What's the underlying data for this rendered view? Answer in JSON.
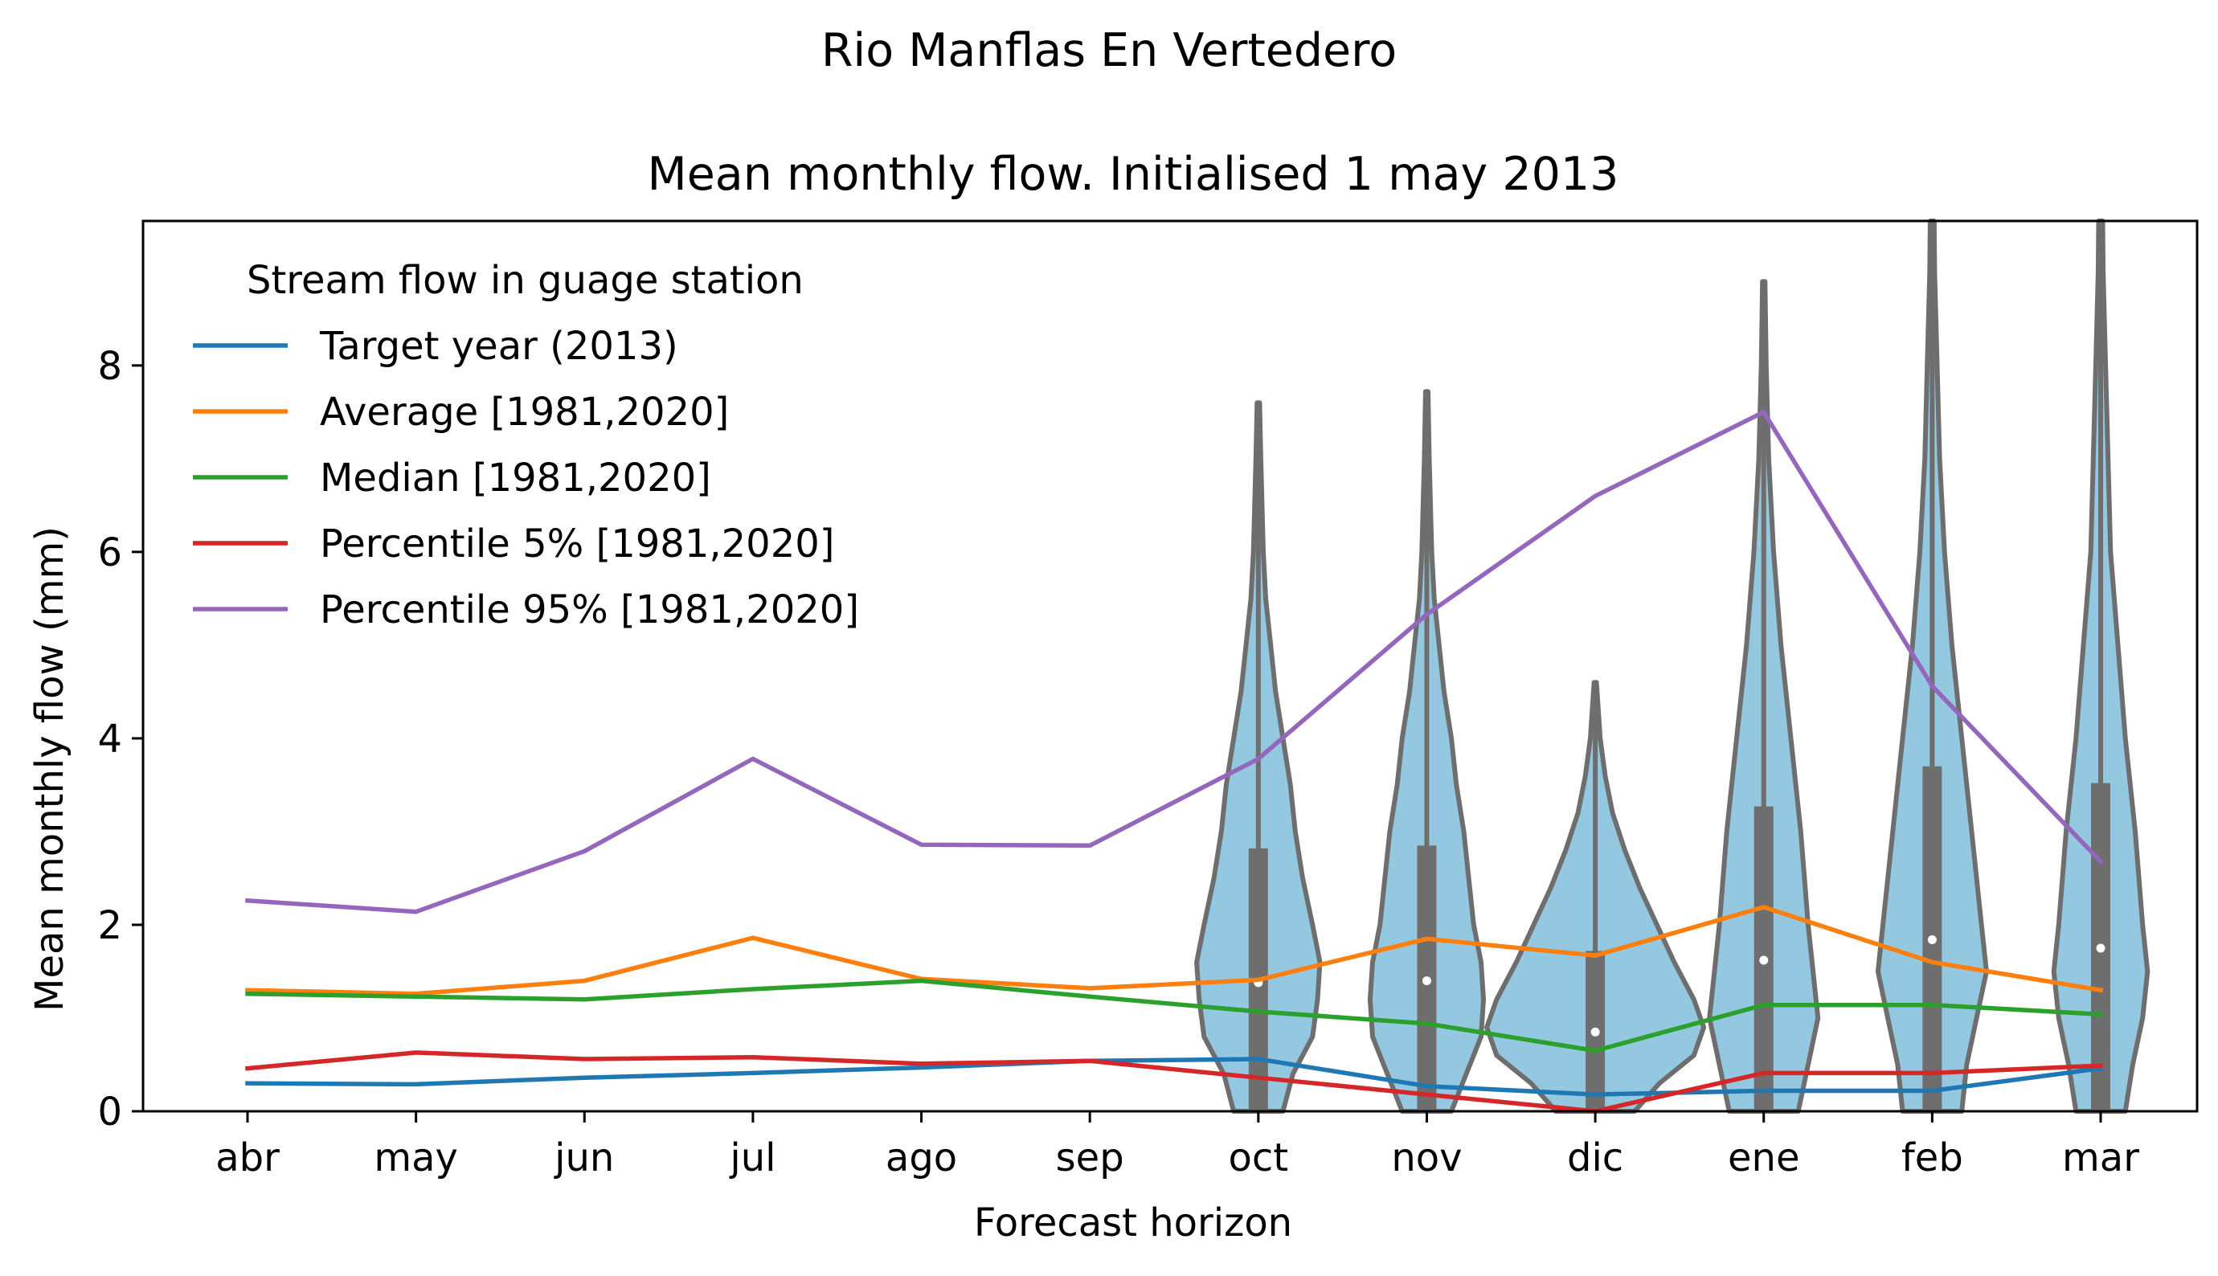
{
  "chart_data": {
    "type": "line",
    "suptitle": "Rio Manflas En Vertedero",
    "title": "Mean monthly flow. Initialised 1 may 2013",
    "xlabel": "Forecast horizon",
    "ylabel": "Mean monthly flow (mm)",
    "categories": [
      "abr",
      "may",
      "jun",
      "jul",
      "ago",
      "sep",
      "oct",
      "nov",
      "dic",
      "ene",
      "feb",
      "mar"
    ],
    "ylim": [
      0,
      9.55
    ],
    "yticks": [
      0,
      2,
      4,
      6,
      8
    ],
    "ytick_labels": [
      "0",
      "2",
      "4",
      "6",
      "8"
    ],
    "grid": false,
    "legend": {
      "title": "Stream flow in guage station",
      "location": "upper-left"
    },
    "series": [
      {
        "name": "Target year (2013)",
        "color": "#1f77b4",
        "values": [
          0.3,
          0.29,
          0.36,
          0.41,
          0.47,
          0.54,
          0.56,
          0.27,
          0.18,
          0.22,
          0.22,
          0.46
        ]
      },
      {
        "name": "Average [1981,2020]",
        "color": "#ff7f0e",
        "values": [
          1.3,
          1.26,
          1.4,
          1.86,
          1.42,
          1.32,
          1.41,
          1.85,
          1.67,
          2.19,
          1.6,
          1.3
        ]
      },
      {
        "name": "Median [1981,2020]",
        "color": "#2ca02c",
        "values": [
          1.26,
          1.23,
          1.2,
          1.31,
          1.4,
          1.23,
          1.07,
          0.94,
          0.65,
          1.14,
          1.14,
          1.04
        ]
      },
      {
        "name": "Percentile 5% [1981,2020]",
        "color": "#d62728",
        "values": [
          0.46,
          0.63,
          0.56,
          0.58,
          0.51,
          0.54,
          0.36,
          0.18,
          0.0,
          0.41,
          0.41,
          0.49
        ]
      },
      {
        "name": "Percentile 95% [1981,2020]",
        "color": "#9467bd",
        "values": [
          2.26,
          2.14,
          2.79,
          3.78,
          2.86,
          2.85,
          3.78,
          5.33,
          6.6,
          7.5,
          4.56,
          2.68
        ]
      }
    ],
    "violins": {
      "fill": "#93c8e0",
      "edge": "#6e6e6e",
      "items": [
        {
          "category": "oct",
          "max": 7.6,
          "q1": 0.0,
          "median": 1.38,
          "q3": 2.82,
          "profile": [
            [
              0,
              0.1
            ],
            [
              0.4,
              0.14
            ],
            [
              0.8,
              0.22
            ],
            [
              1.2,
              0.24
            ],
            [
              1.6,
              0.25
            ],
            [
              2.0,
              0.22
            ],
            [
              2.5,
              0.18
            ],
            [
              3.0,
              0.15
            ],
            [
              3.5,
              0.13
            ],
            [
              4.0,
              0.1
            ],
            [
              4.5,
              0.07
            ],
            [
              5.0,
              0.05
            ],
            [
              5.5,
              0.03
            ],
            [
              6.0,
              0.02
            ],
            [
              7.0,
              0.01
            ],
            [
              7.6,
              0.005
            ]
          ]
        },
        {
          "category": "nov",
          "max": 7.72,
          "q1": 0.0,
          "median": 1.4,
          "q3": 2.85,
          "profile": [
            [
              0,
              0.1
            ],
            [
              0.4,
              0.16
            ],
            [
              0.8,
              0.22
            ],
            [
              1.2,
              0.23
            ],
            [
              1.6,
              0.22
            ],
            [
              2.0,
              0.19
            ],
            [
              2.5,
              0.17
            ],
            [
              3.0,
              0.15
            ],
            [
              3.5,
              0.12
            ],
            [
              4.0,
              0.1
            ],
            [
              4.5,
              0.07
            ],
            [
              5.0,
              0.05
            ],
            [
              5.5,
              0.03
            ],
            [
              6.0,
              0.02
            ],
            [
              7.0,
              0.01
            ],
            [
              7.72,
              0.005
            ]
          ]
        },
        {
          "category": "dic",
          "max": 4.6,
          "q1": 0.0,
          "median": 0.85,
          "q3": 1.72,
          "profile": [
            [
              0,
              0.16
            ],
            [
              0.3,
              0.26
            ],
            [
              0.6,
              0.4
            ],
            [
              0.9,
              0.44
            ],
            [
              1.2,
              0.4
            ],
            [
              1.6,
              0.32
            ],
            [
              2.0,
              0.25
            ],
            [
              2.4,
              0.18
            ],
            [
              2.8,
              0.12
            ],
            [
              3.2,
              0.07
            ],
            [
              3.6,
              0.04
            ],
            [
              4.0,
              0.02
            ],
            [
              4.6,
              0.005
            ]
          ]
        },
        {
          "category": "ene",
          "max": 8.9,
          "q1": 0.0,
          "median": 1.62,
          "q3": 3.27,
          "profile": [
            [
              0,
              0.14
            ],
            [
              0.5,
              0.18
            ],
            [
              1.0,
              0.22
            ],
            [
              1.5,
              0.2
            ],
            [
              2.0,
              0.18
            ],
            [
              3.0,
              0.15
            ],
            [
              4.0,
              0.11
            ],
            [
              5.0,
              0.07
            ],
            [
              6.0,
              0.04
            ],
            [
              7.0,
              0.02
            ],
            [
              8.0,
              0.01
            ],
            [
              8.9,
              0.005
            ]
          ]
        },
        {
          "category": "feb",
          "max": 9.55,
          "q1": 0.0,
          "median": 1.84,
          "q3": 3.7,
          "profile": [
            [
              0,
              0.12
            ],
            [
              0.5,
              0.14
            ],
            [
              1.0,
              0.18
            ],
            [
              1.5,
              0.22
            ],
            [
              2.0,
              0.2
            ],
            [
              3.0,
              0.16
            ],
            [
              4.0,
              0.12
            ],
            [
              5.0,
              0.08
            ],
            [
              6.0,
              0.05
            ],
            [
              7.0,
              0.03
            ],
            [
              8.0,
              0.02
            ],
            [
              9.0,
              0.01
            ],
            [
              9.55,
              0.008
            ]
          ]
        },
        {
          "category": "mar",
          "max": 9.55,
          "q1": 0.0,
          "median": 1.75,
          "q3": 3.52,
          "profile": [
            [
              0,
              0.1
            ],
            [
              0.5,
              0.13
            ],
            [
              1.0,
              0.17
            ],
            [
              1.5,
              0.19
            ],
            [
              2.0,
              0.17
            ],
            [
              3.0,
              0.14
            ],
            [
              4.0,
              0.1
            ],
            [
              5.0,
              0.07
            ],
            [
              6.0,
              0.04
            ],
            [
              7.0,
              0.03
            ],
            [
              8.0,
              0.02
            ],
            [
              9.0,
              0.01
            ],
            [
              9.55,
              0.008
            ]
          ]
        }
      ]
    }
  }
}
